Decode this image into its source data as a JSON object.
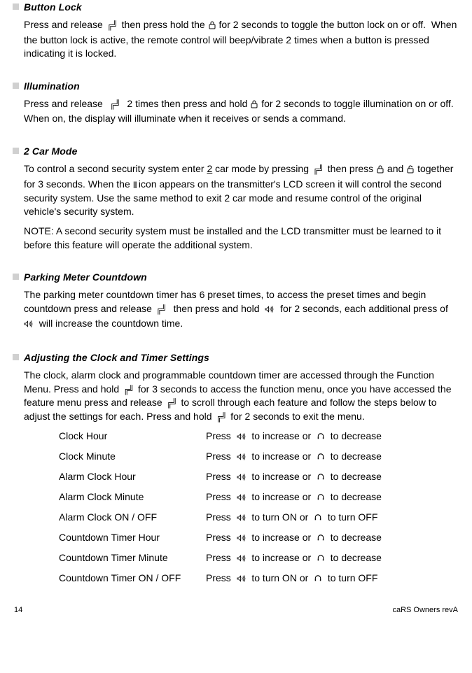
{
  "sections": {
    "buttonLock": {
      "title": "Button Lock",
      "body": "Press and release ⎡F⎤ then press hold the ⎡lock⎤ for 2 seconds to toggle the button lock on or off.  When the button lock is active, the remote control will beep/vibrate 2 times when a button is pressed indicating it is locked."
    },
    "illumination": {
      "title": "Illumination",
      "body": "Press and release  ⎡F⎤  2 times then press and hold ⎡lock⎤ for 2 seconds to toggle illumination on or off.  When on, the display will illuminate when it receives or sends a command."
    },
    "twoCar": {
      "title": "2 Car Mode",
      "body": "To control a second security system enter 2 car mode by pressing ⎡F⎤ then press ⎡lock⎤ and ⎡unlock⎤ together for 3 seconds. When the ⎡II⎤ icon appears on the transmitter's LCD screen it will control the second security system. Use the same method to exit 2 car mode and resume control of the original vehicle's security system.",
      "note": "NOTE: A second security system must be installed and the LCD transmitter must be learned to it before this feature will operate the additional system."
    },
    "parking": {
      "title": "Parking Meter Countdown",
      "body": "The parking meter countdown timer has 6 preset times, to access the preset times and begin countdown press and release ⎡F⎤  then press and hold  ⎡sound⎤  for 2 seconds, each additional press of  ⎡sound⎤  will increase the countdown time."
    },
    "clock": {
      "title": "Adjusting the Clock and Timer Settings",
      "body": "The clock, alarm clock and programmable countdown timer are accessed through the Function Menu. Press and hold ⎡F⎤ for 3 seconds to access the function menu, once you have accessed the feature menu press and release ⎡F⎤ to scroll through each feature and follow the steps below to adjust the settings for each. Press and hold ⎡F⎤ for 2 seconds to exit the menu."
    }
  },
  "settings": [
    {
      "label": "Clock Hour",
      "verb1": "to increase or",
      "verb2": "to decrease"
    },
    {
      "label": "Clock Minute",
      "verb1": "to increase or",
      "verb2": "to decrease"
    },
    {
      "label": "Alarm Clock Hour",
      "verb1": "to increase or",
      "verb2": "to decrease"
    },
    {
      "label": "Alarm Clock Minute",
      "verb1": "to increase or",
      "verb2": "to decrease"
    },
    {
      "label": "Alarm Clock ON / OFF",
      "verb1": "to turn ON or",
      "verb2": "to turn OFF"
    },
    {
      "label": "Countdown Timer Hour",
      "verb1": "to increase or",
      "verb2": "to decrease"
    },
    {
      "label": "Countdown Timer Minute",
      "verb1": "to increase or",
      "verb2": "to decrease"
    },
    {
      "label": "Countdown Timer ON / OFF",
      "verb1": "to turn ON or",
      "verb2": "to turn OFF"
    }
  ],
  "footer": {
    "pageNum": "14",
    "docRef": "caRS Owners revA"
  },
  "ui": {
    "press": "Press"
  }
}
